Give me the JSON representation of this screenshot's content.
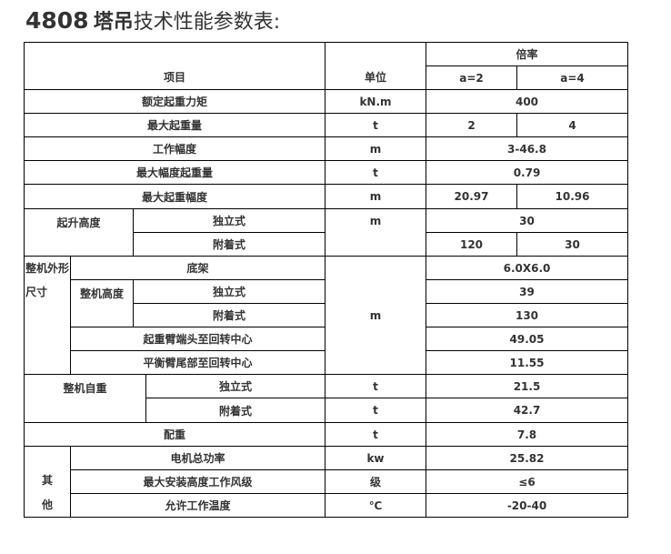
{
  "title": {
    "model": "4808",
    "text_bold": "塔吊",
    "text": "技术性能参数表:"
  },
  "header": {
    "item": "项目",
    "unit": "单位",
    "ratio": "倍率",
    "a2": "a=2",
    "a4": "a=4"
  },
  "rows": {
    "rated_moment": {
      "label": "额定起重力矩",
      "unit": "kN.m",
      "value": "400"
    },
    "max_load": {
      "label": "最大起重量",
      "unit": "t",
      "a2": "2",
      "a4": "4"
    },
    "work_range": {
      "label": "工作幅度",
      "unit": "m",
      "value": "3-46.8"
    },
    "max_range_load": {
      "label": "最大幅度起重量",
      "unit": "t",
      "value": "0.79"
    },
    "max_load_range": {
      "label": "最大起重幅度",
      "unit": "m",
      "a2": "20.97",
      "a4": "10.96"
    },
    "lift_height": {
      "label": "起升高度",
      "unit": "m",
      "freestanding": "独立式",
      "free_value": "30",
      "attached": "附着式",
      "att_a2": "120",
      "att_a4": "30"
    },
    "dimensions": {
      "label": "整机外形尺寸",
      "unit": "m",
      "chassis": "底架",
      "chassis_value": "6.0X6.0",
      "height_label": "整机高度",
      "freestanding": "独立式",
      "free_value": "39",
      "attached": "附着式",
      "att_value": "130",
      "jib_label": "起重臂端头至回转中心",
      "jib_value": "49.05",
      "counter_label": "平衡臂尾部至回转中心",
      "counter_value": "11.55"
    },
    "self_weight": {
      "label": "整机自重",
      "freestanding": "独立式",
      "free_unit": "t",
      "free_value": "21.5",
      "attached": "附着式",
      "att_unit": "t",
      "att_value": "42.7"
    },
    "counterweight": {
      "label": "配重",
      "unit": "t",
      "value": "7.8"
    },
    "other": {
      "label1": "其",
      "label2": "他",
      "motor_label": "电机总功率",
      "motor_unit": "kw",
      "motor_value": "25.82",
      "wind_label": "最大安装高度工作风级",
      "wind_unit": "级",
      "wind_value": "≤6",
      "temp_label": "允许工作温度",
      "temp_unit": "℃",
      "temp_value": "-20-40"
    }
  }
}
